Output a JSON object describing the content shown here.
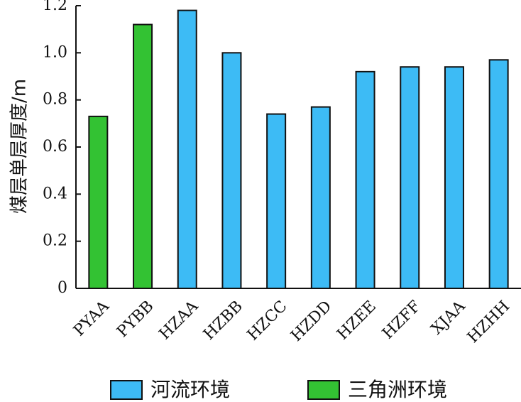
{
  "chart_data": {
    "type": "bar",
    "ylabel": "煤层单层厚度/m",
    "ylim": [
      0,
      1.2
    ],
    "yticks": [
      "0",
      "0.2",
      "0.4",
      "0.6",
      "0.8",
      "1.0",
      "1.2"
    ],
    "categories": [
      "PYAA",
      "PYBB",
      "HZAA",
      "HZBB",
      "HZCC",
      "HZDD",
      "HZEE",
      "HZFF",
      "XJAA",
      "HZHH"
    ],
    "values": [
      0.73,
      1.12,
      1.18,
      1.0,
      0.74,
      0.77,
      0.92,
      0.94,
      0.94,
      0.97
    ],
    "environments": [
      "三角洲环境",
      "三角洲环境",
      "河流环境",
      "河流环境",
      "河流环境",
      "河流环境",
      "河流环境",
      "河流环境",
      "河流环境",
      "河流环境"
    ],
    "legend": [
      {
        "name": "河流环境",
        "color": "#3DBBF5"
      },
      {
        "name": "三角洲环境",
        "color": "#33C233"
      }
    ],
    "legend_position": "bottom",
    "grid": false
  }
}
